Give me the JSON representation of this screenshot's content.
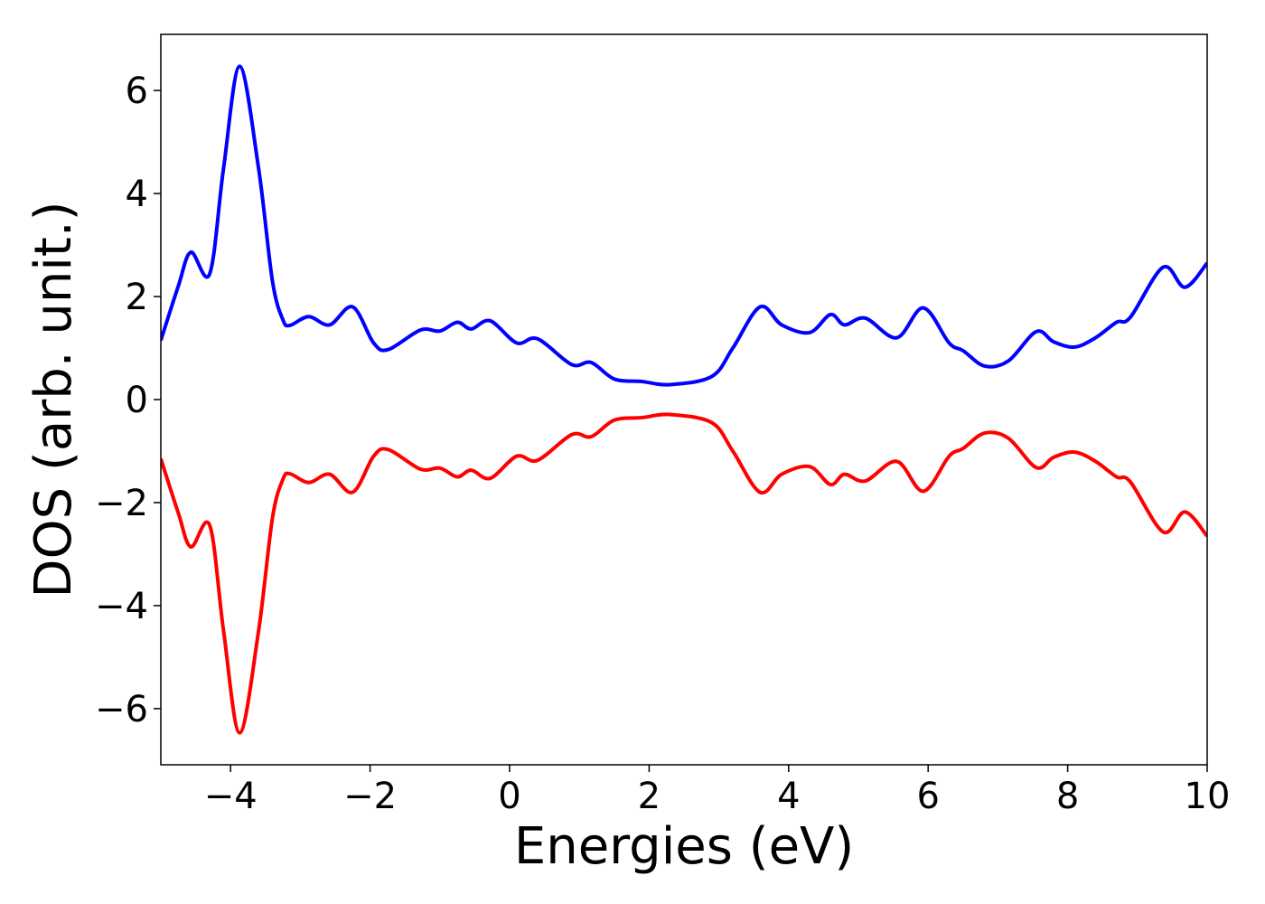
{
  "chart_data": {
    "type": "line",
    "x_label": "Energies (eV)",
    "y_label": "DOS (arb. unit.)",
    "x": [
      -5,
      -4.75,
      -4.57,
      -4.3,
      -4.1,
      -3.87,
      -3.6,
      -3.4,
      -3.25,
      -3.15,
      -2.88,
      -2.58,
      -2.25,
      -1.95,
      -1.74,
      -1.28,
      -1.0,
      -0.75,
      -0.55,
      -0.28,
      0.1,
      0.4,
      0.89,
      1.17,
      1.5,
      1.9,
      2.3,
      2.9,
      3.2,
      3.59,
      3.9,
      4.3,
      4.6,
      4.8,
      5.1,
      5.55,
      5.93,
      6.3,
      6.5,
      6.81,
      7.15,
      7.55,
      7.8,
      8.1,
      8.4,
      8.7,
      8.9,
      9.37,
      9.68,
      10
    ],
    "series": [
      {
        "color": "#0000ff",
        "values": [
          1.15,
          2.2,
          2.86,
          2.44,
          4.5,
          6.47,
          4.5,
          2.3,
          1.55,
          1.44,
          1.61,
          1.45,
          1.8,
          1.1,
          0.97,
          1.35,
          1.33,
          1.5,
          1.37,
          1.53,
          1.1,
          1.18,
          0.68,
          0.72,
          0.4,
          0.35,
          0.29,
          0.45,
          1.0,
          1.8,
          1.45,
          1.3,
          1.65,
          1.45,
          1.58,
          1.2,
          1.78,
          1.1,
          0.95,
          0.65,
          0.75,
          1.32,
          1.12,
          1.02,
          1.2,
          1.5,
          1.6,
          2.57,
          2.18,
          2.65
        ]
      },
      {
        "color": "#ff0000",
        "values": [
          -1.15,
          -2.2,
          -2.86,
          -2.44,
          -4.5,
          -6.47,
          -4.5,
          -2.3,
          -1.55,
          -1.44,
          -1.61,
          -1.45,
          -1.8,
          -1.1,
          -0.97,
          -1.35,
          -1.33,
          -1.5,
          -1.37,
          -1.53,
          -1.1,
          -1.18,
          -0.68,
          -0.72,
          -0.4,
          -0.35,
          -0.29,
          -0.45,
          -1.0,
          -1.8,
          -1.45,
          -1.3,
          -1.65,
          -1.45,
          -1.58,
          -1.2,
          -1.78,
          -1.1,
          -0.95,
          -0.65,
          -0.75,
          -1.32,
          -1.12,
          -1.02,
          -1.2,
          -1.5,
          -1.6,
          -2.57,
          -2.18,
          -2.65
        ]
      }
    ],
    "xlim": [
      -5,
      10
    ],
    "ylim": [
      -7.09,
      7.09
    ],
    "xticks": [
      {
        "value": -4,
        "label": "−4"
      },
      {
        "value": -2,
        "label": "−2"
      },
      0,
      2,
      4,
      6,
      8,
      10
    ],
    "yticks": [
      {
        "value": -6,
        "label": "−6"
      },
      {
        "value": -4,
        "label": "−4"
      },
      {
        "value": -2,
        "label": "−2"
      },
      0,
      2,
      4,
      6
    ],
    "grid": false
  }
}
